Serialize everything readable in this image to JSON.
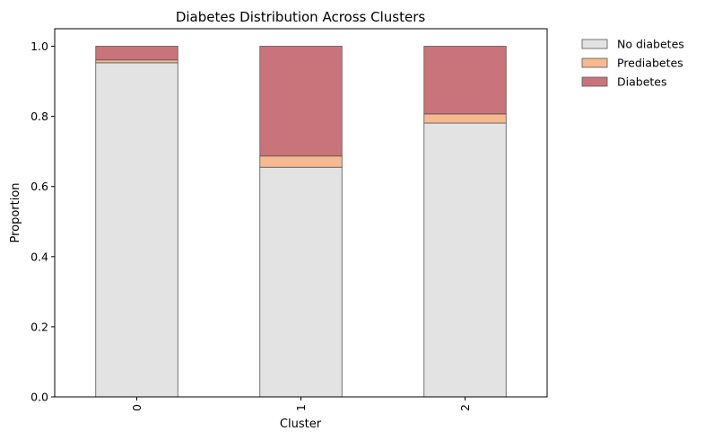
{
  "chart_data": {
    "type": "bar",
    "stacked": true,
    "title": "Diabetes Distribution Across Clusters",
    "xlabel": "Cluster",
    "ylabel": "Proportion",
    "categories": [
      "0",
      "1",
      "2"
    ],
    "ylim": [
      0,
      1.05
    ],
    "yticks": [
      "0.0",
      "0.2",
      "0.4",
      "0.6",
      "0.8",
      "1.0"
    ],
    "grid": false,
    "legend_position": "outside-top-right",
    "series": [
      {
        "name": "No diabetes",
        "values": [
          0.953,
          0.655,
          0.781
        ],
        "color": "#e3e3e3"
      },
      {
        "name": "Prediabetes",
        "values": [
          0.008,
          0.032,
          0.026
        ],
        "color": "#f7b98f"
      },
      {
        "name": "Diabetes",
        "values": [
          0.039,
          0.313,
          0.193
        ],
        "color": "#c9747a"
      }
    ]
  }
}
